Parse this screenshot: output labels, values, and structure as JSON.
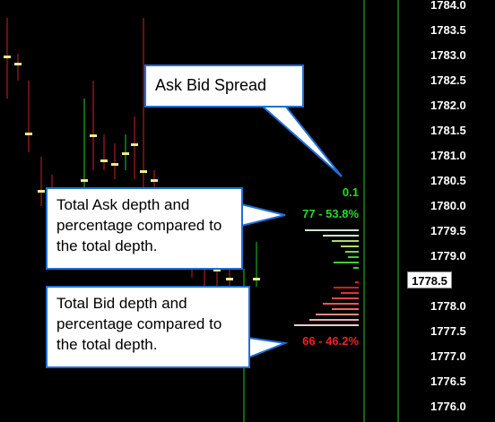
{
  "price_axis": {
    "labels": [
      "1784.0",
      "1783.5",
      "1783.0",
      "1782.5",
      "1782.0",
      "1781.5",
      "1781.0",
      "1780.5",
      "1780.0",
      "1779.5",
      "1779.0",
      "1778.5",
      "1778.0",
      "1777.5",
      "1777.0",
      "1776.5",
      "1776.0"
    ],
    "current_price": "1778.5"
  },
  "depth": {
    "spread": "0.1",
    "ask_total": "77 - 53.8%",
    "bid_total": "66 - 46.2%",
    "ask_color": "#22dd22",
    "bid_color": "#ee2222"
  },
  "callouts": {
    "spread": "Ask Bid Spread",
    "ask": "Total Ask depth and percentage compared to the total depth.",
    "bid": "Total Bid depth and percentage compared to the total depth."
  },
  "colors": {
    "background": "#000000",
    "up_bar": "#22cc22",
    "down_bar": "#cc2222",
    "tick": "#e8ee88",
    "callout_border": "#1f6fd6"
  }
}
